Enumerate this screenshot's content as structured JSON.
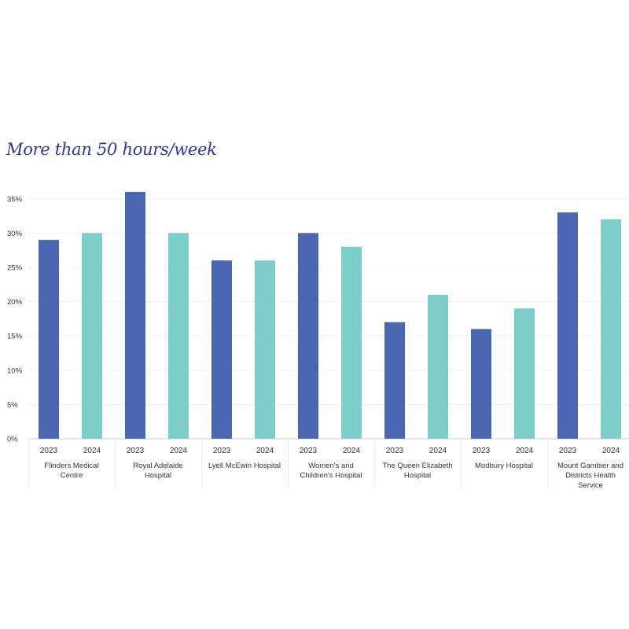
{
  "chart_data": {
    "type": "bar",
    "title": "More than 50 hours/week",
    "xlabel": "",
    "ylabel": "",
    "ylim": [
      0,
      35
    ],
    "yticks": [
      {
        "value": 0,
        "label": "0%"
      },
      {
        "value": 5,
        "label": "5%"
      },
      {
        "value": 10,
        "label": "10%"
      },
      {
        "value": 15,
        "label": "15%"
      },
      {
        "value": 20,
        "label": "20%"
      },
      {
        "value": 25,
        "label": "25%"
      },
      {
        "value": 30,
        "label": "30%"
      },
      {
        "value": 35,
        "label": "35%"
      }
    ],
    "grid": true,
    "legend": "none",
    "series_colors": {
      "2023": "#4a66b0",
      "2024": "#7dcdca"
    },
    "groups": [
      {
        "label": [
          "Flinders Medical",
          "Centre"
        ],
        "bars": [
          {
            "year": "2023",
            "value": 29
          },
          {
            "year": "2024",
            "value": 30
          }
        ]
      },
      {
        "label": [
          "Royal Adelaide",
          "Hospital"
        ],
        "bars": [
          {
            "year": "2023",
            "value": 36
          },
          {
            "year": "2024",
            "value": 30
          }
        ]
      },
      {
        "label": [
          "Lyell McEwin Hospital"
        ],
        "bars": [
          {
            "year": "2023",
            "value": 26
          },
          {
            "year": "2024",
            "value": 26
          }
        ]
      },
      {
        "label": [
          "Women's and",
          "Children's Hospital"
        ],
        "bars": [
          {
            "year": "2023",
            "value": 30
          },
          {
            "year": "2024",
            "value": 28
          }
        ]
      },
      {
        "label": [
          "The Queen Elizabeth",
          "Hospital"
        ],
        "bars": [
          {
            "year": "2023",
            "value": 17
          },
          {
            "year": "2024",
            "value": 21
          }
        ]
      },
      {
        "label": [
          "Modbury Hospital"
        ],
        "bars": [
          {
            "year": "2023",
            "value": 16
          },
          {
            "year": "2024",
            "value": 19
          }
        ]
      },
      {
        "label": [
          "Mount Gambier and",
          "Districts Health",
          "Service"
        ],
        "bars": [
          {
            "year": "2023",
            "value": 33
          },
          {
            "year": "2024",
            "value": 32
          }
        ]
      }
    ]
  }
}
